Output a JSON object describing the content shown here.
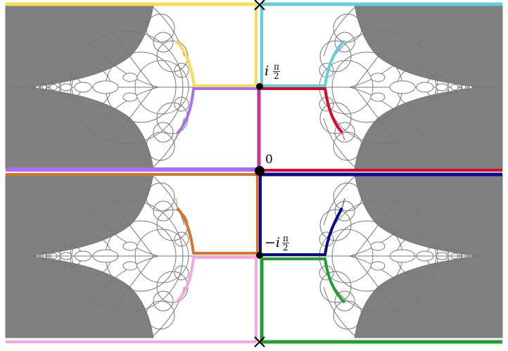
{
  "labels": {
    "upper": {
      "prefix": "i",
      "num": "π",
      "den": "2"
    },
    "origin": "0",
    "lower": {
      "prefix": "−i",
      "num": "π",
      "den": "2"
    }
  },
  "colors": {
    "fractal_fill": "#808080",
    "fractal_lines": "#777777",
    "yellow": "#f7dc5a",
    "cyan": "#5fcfdb",
    "purple": "#a96ff2",
    "red": "#d70a2c",
    "orange": "#d8752a",
    "navy": "#0a0a8e",
    "pink": "#f5a6e4",
    "green": "#20a030",
    "magenta_stem": "#c0398e",
    "markers": "#000000"
  }
}
